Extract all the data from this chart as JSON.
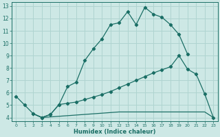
{
  "xlabel": "Humidex (Indice chaleur)",
  "ylabel": "",
  "bg_color": "#cde8e5",
  "grid_color": "#afd4d0",
  "line_color": "#1a6e65",
  "xlim": [
    -0.5,
    23.5
  ],
  "ylim": [
    3.7,
    13.3
  ],
  "xticks": [
    0,
    1,
    2,
    3,
    4,
    5,
    6,
    7,
    8,
    9,
    10,
    11,
    12,
    13,
    14,
    15,
    16,
    17,
    18,
    19,
    20,
    21,
    22,
    23
  ],
  "yticks": [
    4,
    5,
    6,
    7,
    8,
    9,
    10,
    11,
    12,
    13
  ],
  "curve1_x": [
    0,
    1,
    2,
    3,
    4,
    5,
    6,
    7,
    8,
    9,
    10,
    11,
    12,
    13,
    14,
    15,
    16,
    17,
    18,
    19,
    20
  ],
  "curve1_y": [
    5.7,
    5.0,
    4.3,
    4.0,
    4.25,
    5.05,
    6.5,
    6.85,
    8.6,
    9.55,
    10.35,
    11.5,
    11.65,
    12.55,
    11.5,
    12.9,
    12.35,
    12.1,
    11.5,
    10.7,
    9.1
  ],
  "curve2_x": [
    2,
    3,
    4,
    5,
    6,
    7,
    8,
    9,
    10,
    11,
    12,
    13,
    14,
    15,
    16,
    17,
    18,
    19,
    20,
    21,
    22,
    23
  ],
  "curve2_y": [
    4.3,
    4.0,
    4.25,
    5.05,
    5.15,
    5.25,
    5.45,
    5.65,
    5.85,
    6.1,
    6.4,
    6.7,
    7.0,
    7.3,
    7.6,
    7.85,
    8.1,
    9.0,
    7.9,
    7.5,
    5.9,
    4.0
  ],
  "curve3_x": [
    2,
    3,
    4,
    5,
    6,
    7,
    8,
    9,
    10,
    11,
    12,
    13,
    14,
    15,
    16,
    17,
    18,
    19,
    20,
    21,
    22,
    23
  ],
  "curve3_y": [
    4.3,
    4.0,
    4.05,
    4.1,
    4.15,
    4.2,
    4.25,
    4.3,
    4.35,
    4.4,
    4.45,
    4.45,
    4.45,
    4.45,
    4.45,
    4.45,
    4.45,
    4.45,
    4.45,
    4.45,
    4.45,
    4.0
  ]
}
